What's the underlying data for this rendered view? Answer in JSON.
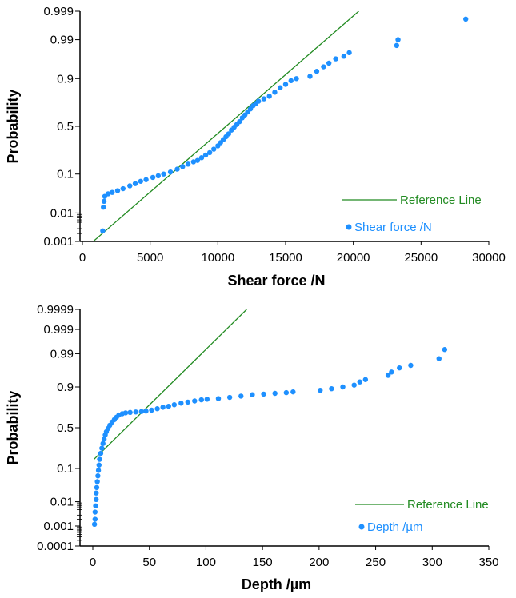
{
  "colors": {
    "points": "#1e90ff",
    "reference_line": "#228b22",
    "axis": "#000000"
  },
  "chart_data": [
    {
      "type": "scatter",
      "subtype": "probability-plot",
      "xlabel": "Shear force /N",
      "ylabel": "Probability",
      "x_ticks": [
        "0",
        "5000",
        "10000",
        "15000",
        "20000",
        "25000",
        "30000"
      ],
      "y_ticks": [
        "0.001",
        "0.01",
        "0.1",
        "0.5",
        "0.9",
        "0.99",
        "0.999"
      ],
      "xlim": [
        0,
        30000
      ],
      "ylim": [
        0.001,
        0.999
      ],
      "y_scale": "normal-probability",
      "legend_position": "bottom-right",
      "reference_line": {
        "name": "Reference Line",
        "points": [
          [
            800,
            0.001
          ],
          [
            20400,
            0.999
          ]
        ]
      },
      "series": [
        {
          "name": "Shear force /N",
          "points": [
            [
              1500,
              0.0025
            ],
            [
              1550,
              0.015
            ],
            [
              1600,
              0.022
            ],
            [
              1650,
              0.03
            ],
            [
              1900,
              0.035
            ],
            [
              2200,
              0.038
            ],
            [
              2600,
              0.042
            ],
            [
              3000,
              0.047
            ],
            [
              3500,
              0.055
            ],
            [
              3900,
              0.062
            ],
            [
              4300,
              0.07
            ],
            [
              4700,
              0.076
            ],
            [
              5200,
              0.085
            ],
            [
              5600,
              0.092
            ],
            [
              6000,
              0.1
            ],
            [
              6500,
              0.11
            ],
            [
              7000,
              0.125
            ],
            [
              7400,
              0.14
            ],
            [
              7800,
              0.155
            ],
            [
              8200,
              0.17
            ],
            [
              8500,
              0.18
            ],
            [
              8800,
              0.2
            ],
            [
              9100,
              0.22
            ],
            [
              9400,
              0.24
            ],
            [
              9700,
              0.27
            ],
            [
              10000,
              0.3
            ],
            [
              10200,
              0.33
            ],
            [
              10400,
              0.36
            ],
            [
              10600,
              0.39
            ],
            [
              10800,
              0.42
            ],
            [
              11000,
              0.46
            ],
            [
              11200,
              0.49
            ],
            [
              11400,
              0.52
            ],
            [
              11600,
              0.55
            ],
            [
              11800,
              0.59
            ],
            [
              12000,
              0.62
            ],
            [
              12200,
              0.65
            ],
            [
              12400,
              0.68
            ],
            [
              12600,
              0.71
            ],
            [
              12800,
              0.73
            ],
            [
              13000,
              0.75
            ],
            [
              13400,
              0.77
            ],
            [
              13800,
              0.79
            ],
            [
              14200,
              0.82
            ],
            [
              14600,
              0.85
            ],
            [
              15000,
              0.87
            ],
            [
              15400,
              0.89
            ],
            [
              15800,
              0.9
            ],
            [
              16800,
              0.91
            ],
            [
              17300,
              0.93
            ],
            [
              17800,
              0.945
            ],
            [
              18200,
              0.955
            ],
            [
              18700,
              0.965
            ],
            [
              19300,
              0.97
            ],
            [
              19700,
              0.976
            ],
            [
              23200,
              0.985
            ],
            [
              23300,
              0.99
            ],
            [
              28300,
              0.998
            ]
          ]
        }
      ]
    },
    {
      "type": "scatter",
      "subtype": "probability-plot",
      "xlabel": "Depth /µm",
      "ylabel": "Probability",
      "x_ticks": [
        "0",
        "50",
        "100",
        "150",
        "200",
        "250",
        "300",
        "350"
      ],
      "y_ticks": [
        "0.0001",
        "0.001",
        "0.01",
        "0.1",
        "0.5",
        "0.9",
        "0.99",
        "0.999",
        "0.9999"
      ],
      "xlim": [
        0,
        350
      ],
      "ylim": [
        0.0001,
        0.9999
      ],
      "y_scale": "normal-probability",
      "legend_position": "bottom-right",
      "reference_line": {
        "name": "Reference Line",
        "points": [
          [
            1,
            0.16
          ],
          [
            136,
            0.9999
          ]
        ]
      },
      "series": [
        {
          "name": "Depth /µm",
          "points": [
            [
              1.5,
              0.0012
            ],
            [
              2,
              0.002
            ],
            [
              2,
              0.004
            ],
            [
              2.5,
              0.007
            ],
            [
              3,
              0.012
            ],
            [
              3,
              0.02
            ],
            [
              3.5,
              0.03
            ],
            [
              4,
              0.045
            ],
            [
              4.5,
              0.065
            ],
            [
              5,
              0.09
            ],
            [
              5.5,
              0.12
            ],
            [
              6,
              0.16
            ],
            [
              7,
              0.21
            ],
            [
              8,
              0.26
            ],
            [
              9,
              0.31
            ],
            [
              10,
              0.36
            ],
            [
              11,
              0.41
            ],
            [
              12,
              0.45
            ],
            [
              13.5,
              0.49
            ],
            [
              15,
              0.53
            ],
            [
              17,
              0.57
            ],
            [
              19,
              0.6
            ],
            [
              21,
              0.63
            ],
            [
              23,
              0.655
            ],
            [
              26,
              0.67
            ],
            [
              29,
              0.68
            ],
            [
              33,
              0.685
            ],
            [
              38,
              0.69
            ],
            [
              43,
              0.695
            ],
            [
              47,
              0.7
            ],
            [
              52,
              0.71
            ],
            [
              57,
              0.725
            ],
            [
              62,
              0.74
            ],
            [
              67,
              0.75
            ],
            [
              72,
              0.765
            ],
            [
              78,
              0.78
            ],
            [
              84,
              0.79
            ],
            [
              90,
              0.8
            ],
            [
              96,
              0.81
            ],
            [
              101,
              0.815
            ],
            [
              111,
              0.82
            ],
            [
              121,
              0.83
            ],
            [
              131,
              0.84
            ],
            [
              141,
              0.85
            ],
            [
              151,
              0.855
            ],
            [
              161,
              0.86
            ],
            [
              171,
              0.865
            ],
            [
              177,
              0.87
            ],
            [
              201,
              0.88
            ],
            [
              211,
              0.89
            ],
            [
              221,
              0.9
            ],
            [
              231,
              0.91
            ],
            [
              236,
              0.925
            ],
            [
              241,
              0.935
            ],
            [
              261,
              0.95
            ],
            [
              264,
              0.96
            ],
            [
              271,
              0.97
            ],
            [
              281,
              0.975
            ],
            [
              306,
              0.985
            ],
            [
              311,
              0.993
            ]
          ]
        }
      ]
    }
  ]
}
